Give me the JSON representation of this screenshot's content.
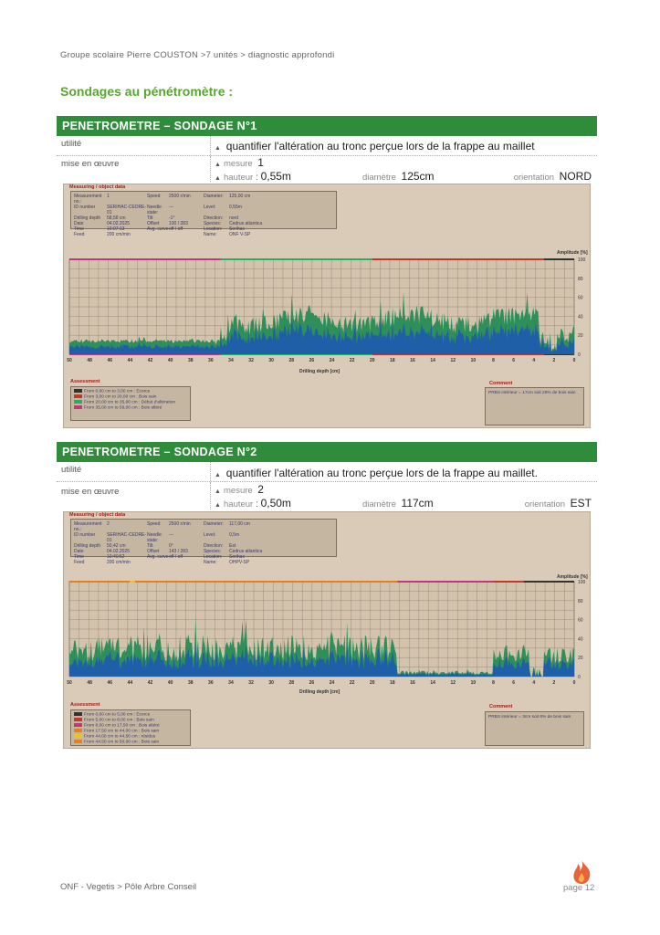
{
  "breadcrumb": "Groupe scolaire Pierre COUSTON >7 unités > diagnostic approfondi",
  "section_title": "Sondages au pénétromètre :",
  "footer": "ONF - Vegetis > Pôle Arbre Conseil",
  "page": "page 12",
  "colors": {
    "header": "#2f8c3a",
    "title": "#5aa632",
    "panel": "#d9cbb8",
    "trace_dark": "#1f5fa8",
    "trace_green": "#2e8f5a"
  },
  "sondages": [
    {
      "title": "PENETROMETRE – SONDAGE N°1",
      "utilite_label": "utilité",
      "utilite_value": "quantifier l'altération au tronc perçue lors de la frappe au maillet",
      "mise_label": "mise en œuvre",
      "mesure_label": "mesure",
      "mesure_value": "1",
      "hauteur_label": "hauteur",
      "hauteur_value": "0,55m",
      "diametre_label": "diamètre",
      "diametre_value": "125cm",
      "orientation_label": "orientation",
      "orientation_value": "NORD",
      "panel_tag": "Measuring / object data",
      "meta": [
        "Measurement no.:",
        "1",
        "Speed",
        "2500 r/min",
        "Diameter:",
        "125,00 cm",
        "ID number",
        "SERIHAC-CEDRE-01",
        "Needle state:",
        "---",
        "Level:",
        "0,55m",
        "Drilling depth",
        "58,58 cm",
        "Tilt",
        "-1°",
        "Direction:",
        "nord",
        "Date",
        "04.02.2025",
        "Offset",
        "100 / 283",
        "Species:",
        "Cedrus atlantica",
        "Time",
        "10:07:13",
        "Avg. curve",
        "off / off",
        "Location:",
        "Serihac",
        "Feed",
        "200 cm/min",
        "",
        "",
        "Name:",
        "ONF V-SP"
      ],
      "amplitude_label": "Amplitude [%]",
      "y_ticks": [
        "100",
        "80",
        "60",
        "40",
        "20",
        "0"
      ],
      "x_ticks": [
        "50",
        "48",
        "46",
        "44",
        "42",
        "40",
        "38",
        "36",
        "34",
        "32",
        "30",
        "28",
        "26",
        "24",
        "22",
        "20",
        "18",
        "16",
        "14",
        "12",
        "10",
        "8",
        "6",
        "4",
        "2",
        "0"
      ],
      "x_axis_label": "Drilling depth [cm]",
      "assessment_title": "Assessment",
      "assessment": [
        {
          "color": "#333333",
          "text": "From   0,00 cm  to     3,00 cm :  Ecorce"
        },
        {
          "color": "#c0392b",
          "text": "From   3,00 cm  to   20,00 cm :  Bois sain"
        },
        {
          "color": "#27ae60",
          "text": "From 20,00 cm  to   35,00 cm :  Début d'altération"
        },
        {
          "color": "#c0397b",
          "text": "From 35,00 cm  to   58,00 cm :  Bois altéré"
        }
      ],
      "comment_title": "Comment",
      "comment": "PRBS intérieur = 17cm soit 28% de bois sain"
    },
    {
      "title": "PENETROMETRE – SONDAGE N°2",
      "utilite_label": "utilité",
      "utilite_value": "quantifier l'altération au tronc perçue lors de la frappe au maillet.",
      "mise_label": "mise en œuvre",
      "mesure_label": "mesure",
      "mesure_value": "2",
      "hauteur_label": "hauteur",
      "hauteur_value": "0,50m",
      "diametre_label": "diamètre",
      "diametre_value": "117cm",
      "orientation_label": "orientation",
      "orientation_value": "EST",
      "panel_tag": "Measuring / object data",
      "meta": [
        "Measurement no.:",
        "2",
        "Speed",
        "2500 r/min",
        "Diameter:",
        "117,00 cm",
        "ID number",
        "SERIHAC-CEDRE-01",
        "Needle state:",
        "---",
        "Level:",
        "0,5m",
        "Drilling depth",
        "50,42 cm",
        "Tilt",
        "0°",
        "Direction:",
        "Est",
        "Date",
        "04.02.2025",
        "Offset",
        "143 / 283",
        "Species:",
        "Cedrus atlantica",
        "Time",
        "10:40:52",
        "Avg. curve",
        "off / off",
        "Location:",
        "Serihac",
        "Feed",
        "200 cm/min",
        "",
        "",
        "Name:",
        "OHPV-SP"
      ],
      "amplitude_label": "Amplitude [%]",
      "y_ticks": [
        "100",
        "80",
        "60",
        "40",
        "20",
        "0"
      ],
      "x_ticks": [
        "50",
        "48",
        "46",
        "44",
        "42",
        "40",
        "38",
        "36",
        "34",
        "32",
        "30",
        "28",
        "26",
        "24",
        "22",
        "20",
        "18",
        "16",
        "14",
        "12",
        "10",
        "8",
        "6",
        "4",
        "2",
        "0"
      ],
      "x_axis_label": "Drilling depth [cm]",
      "assessment_title": "Assessment",
      "assessment": [
        {
          "color": "#333333",
          "text": "From   0,00 cm  to     5,00 cm :  Ecorce"
        },
        {
          "color": "#c0392b",
          "text": "From   5,00 cm  to     8,00 cm :  Bois sain"
        },
        {
          "color": "#c0397b",
          "text": "From   8,00 cm  to   17,50 cm :  Bois altéré"
        },
        {
          "color": "#e67e22",
          "text": "From 17,50 cm  to   44,00 cm :  Bois sain"
        },
        {
          "color": "#f1c40f",
          "text": "From 44,00 cm  to   44,50 cm :  résidus"
        },
        {
          "color": "#e67e22",
          "text": "From 44,50 cm  to   50,00 cm :  Bois sain"
        }
      ],
      "comment_title": "Comment",
      "comment": "PRBS intérieur = 3cm soit 6% de bois sain"
    }
  ]
}
